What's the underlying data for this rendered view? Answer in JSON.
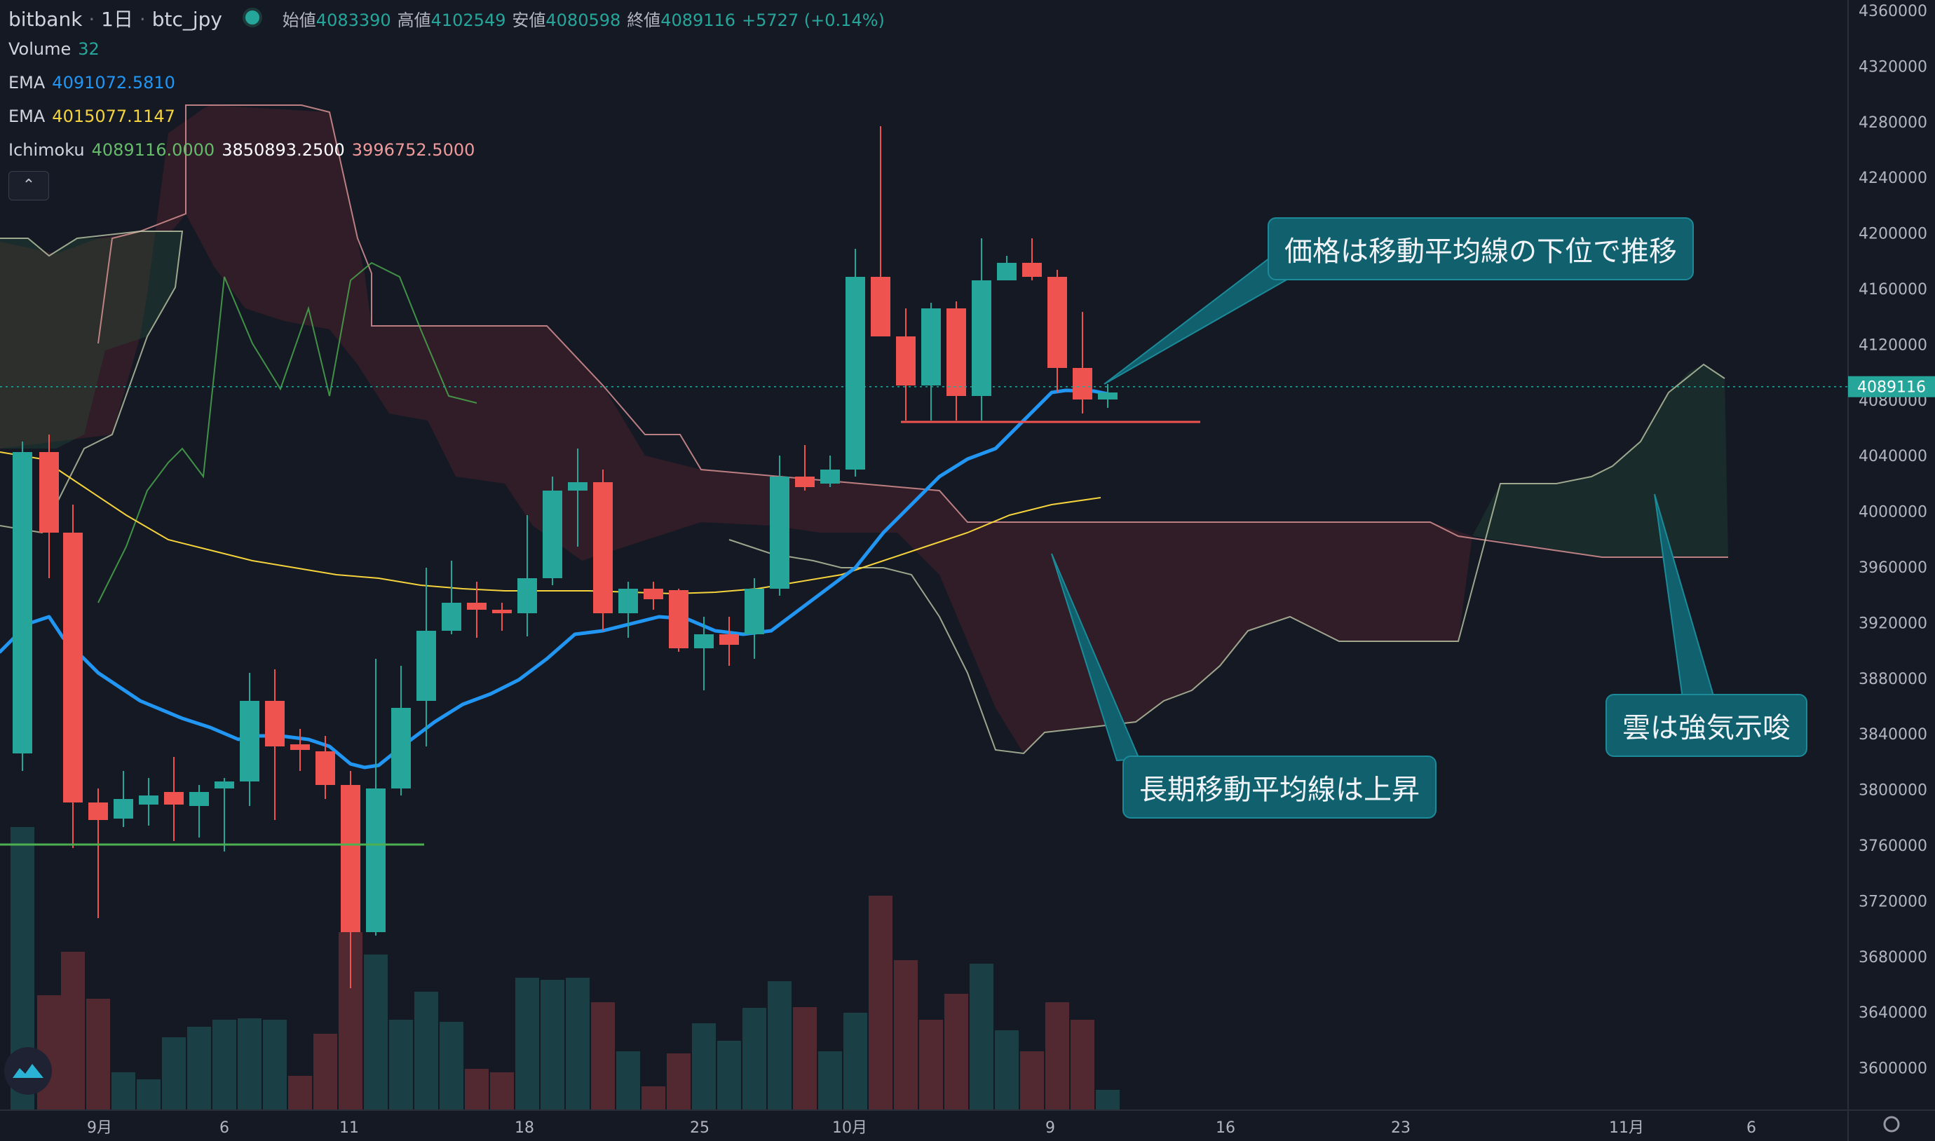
{
  "header": {
    "exchange": "bitbank",
    "interval": "1日",
    "symbol": "btc_jpy",
    "open_label": "始値",
    "open": "4083390",
    "high_label": "高値",
    "high": "4102549",
    "low_label": "安値",
    "low": "4080598",
    "close_label": "終値",
    "close": "4089116",
    "change": "+5727 (+0.14%)"
  },
  "indicators": {
    "volume": {
      "name": "Volume",
      "value": "32"
    },
    "ema1": {
      "name": "EMA",
      "value": "4091072.5810",
      "color": "#2196f3"
    },
    "ema2": {
      "name": "EMA",
      "value": "4015077.1147",
      "color": "#f5d33c"
    },
    "ichimoku": {
      "name": "Ichimoku",
      "v1": "4089116.0000",
      "v2": "3850893.2500",
      "v3": "3996752.5000",
      "c1": "#66bb6a",
      "c2": "#ffffff",
      "c3": "#ef9a9a"
    }
  },
  "collapse_icon": "chevron-up-icon",
  "annotations": {
    "a1": "価格は移動平均線の下位で推移",
    "a2": "長期移動平均線は上昇",
    "a3": "雲は強気示唆"
  },
  "price_axis": {
    "labels": [
      "4360000",
      "4320000",
      "4280000",
      "4240000",
      "4200000",
      "4160000",
      "4120000",
      "4080000",
      "4040000",
      "4000000",
      "3960000",
      "3920000",
      "3880000",
      "3840000",
      "3800000",
      "3760000",
      "3720000",
      "3680000",
      "3640000",
      "3600000"
    ],
    "current": "4089116"
  },
  "time_axis": {
    "labels": [
      "9月",
      "6",
      "11",
      "18",
      "25",
      "10月",
      "9",
      "16",
      "23",
      "11月",
      "6"
    ]
  },
  "colors": {
    "up": "#26a69a",
    "down": "#ef5350",
    "bg": "#151924"
  },
  "chart_data": {
    "type": "candlestick",
    "y_range": [
      3580000,
      4380000
    ],
    "ema_short": [
      3930000,
      3895000,
      3870000,
      3855000,
      3850000,
      3845000,
      3830000,
      3822000,
      3830000,
      3850000,
      3870000,
      3890000,
      3910000,
      3925000,
      3930000,
      3933000,
      3925000,
      3918000,
      3925000,
      3935000,
      3960000,
      3970000,
      3985000,
      4005000,
      4025000,
      4040000,
      4050000,
      4070000,
      4087000,
      4089000
    ],
    "ema_long": [
      4045000,
      4025000,
      4010000,
      3990000,
      3975000,
      3962000,
      3955000,
      3950000,
      3945000,
      3945000,
      3946000,
      3946000,
      3945000,
      3943000,
      3945000,
      3950000,
      3960000,
      3968000,
      3975000,
      3990000,
      4000000,
      4010000
    ],
    "ichimoku_cloud_upper": [
      4000000,
      4000000,
      4000000,
      4000000,
      4000000,
      3988000,
      3988000,
      3988000,
      3988000,
      3970000,
      3970000,
      4030000,
      4050000,
      4100000,
      4120000,
      4100000
    ],
    "ichimoku_cloud_lower": [
      3840000,
      3855000,
      3870000,
      3900000,
      3915000,
      3915000,
      3915000,
      3915000,
      3915000,
      3970000,
      3970000,
      3970000,
      3970000,
      3970000,
      3970000,
      3970000
    ]
  }
}
